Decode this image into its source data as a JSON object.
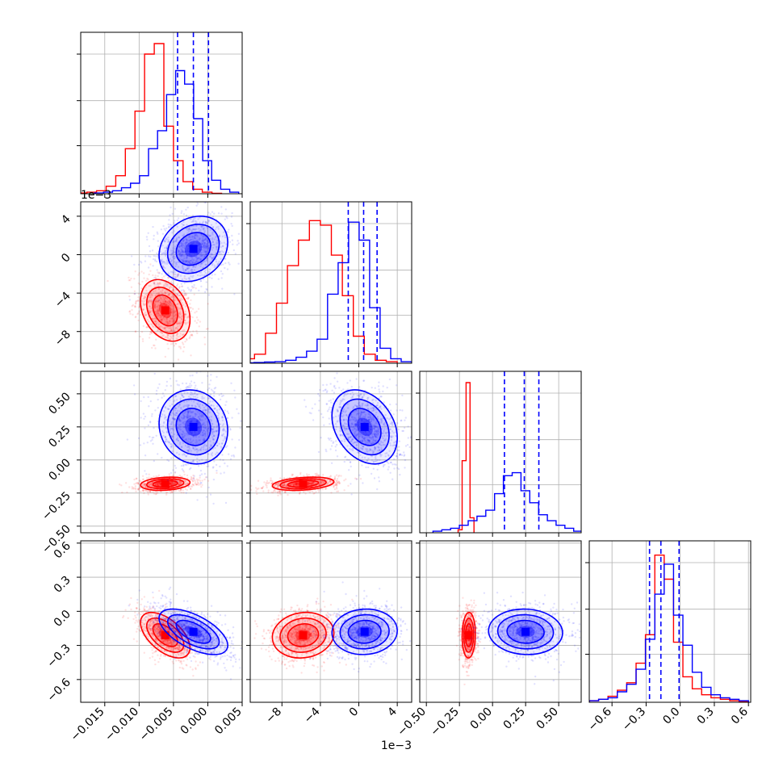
{
  "chart_data": {
    "type": "corner",
    "parameters": [
      {
        "ylim": [
          0,
          1
        ],
        "ticks": [],
        "tick_labels": []
      },
      {
        "lim": [
          -0.0185,
          0.005
        ],
        "ticks": [
          -0.015,
          -0.01,
          -0.005,
          0.0,
          0.005
        ],
        "tick_labels": [
          "−0.015",
          "−0.010",
          "−0.005",
          "0.000",
          "0.005"
        ]
      },
      {
        "lim": [
          -0.0113,
          0.0055
        ],
        "ticks": [
          -0.008,
          -0.004,
          0.0,
          0.004
        ],
        "tick_labels": [
          "−8",
          "−4",
          "0",
          "4"
        ],
        "offset_text": "1e−3"
      },
      {
        "lim": [
          -0.55,
          0.67
        ],
        "ticks": [
          -0.5,
          -0.25,
          0.0,
          0.25,
          0.5
        ],
        "tick_labels": [
          "−0.50",
          "−0.25",
          "0.00",
          "0.25",
          "0.50"
        ]
      },
      {
        "lim": [
          -0.8,
          0.62
        ],
        "ticks": [
          -0.6,
          -0.3,
          0.0,
          0.3,
          0.6
        ],
        "tick_labels": [
          "−0.6",
          "−0.3",
          "0.0",
          "0.3",
          "0.6"
        ]
      }
    ],
    "series": [
      {
        "name": "",
        "color": "#ff0000",
        "mean": [
          -0.0062,
          -0.0058,
          -0.18,
          -0.21
        ],
        "sd": [
          0.0018,
          0.0016,
          0.025,
          0.1
        ],
        "corr": [
          [
            0,
            1,
            -0.3
          ],
          [
            0,
            2,
            0.2
          ],
          [
            0,
            3,
            -0.55
          ],
          [
            1,
            2,
            0.3
          ],
          [
            1,
            3,
            0.1
          ],
          [
            2,
            3,
            0.05
          ]
        ],
        "hist": [
          {
            "x0": -0.019,
            "x1": 0.002,
            "heights": [
              0.005,
              0.01,
              0.02,
              0.05,
              0.12,
              0.3,
              0.55,
              0.93,
              1.0,
              0.45,
              0.22,
              0.08,
              0.03,
              0.01,
              0.003
            ]
          },
          {
            "x0": -0.012,
            "x1": 0.004,
            "heights": [
              0.03,
              0.06,
              0.2,
              0.4,
              0.65,
              0.82,
              0.95,
              0.92,
              0.72,
              0.45,
              0.18,
              0.06,
              0.02,
              0.01
            ]
          },
          {
            "x0": -0.26,
            "x1": -0.14,
            "heights": [
              0.02,
              0.48,
              1.0,
              0.1
            ]
          },
          {
            "x0": -0.8,
            "x1": 0.6,
            "heights": [
              0.01,
              0.02,
              0.04,
              0.08,
              0.13,
              0.26,
              0.45,
              0.98,
              0.82,
              0.4,
              0.17,
              0.09,
              0.05,
              0.03,
              0.02,
              0.01,
              0.005
            ]
          }
        ]
      },
      {
        "name": "",
        "color": "#0000ff",
        "mean": [
          -0.0021,
          0.0006,
          0.25,
          -0.18
        ],
        "sd": [
          0.0025,
          0.0017,
          0.14,
          0.1
        ],
        "corr": [
          [
            0,
            1,
            0.2
          ],
          [
            0,
            2,
            -0.1
          ],
          [
            0,
            3,
            -0.6
          ],
          [
            1,
            2,
            -0.3
          ],
          [
            1,
            3,
            0.05
          ],
          [
            2,
            3,
            -0.05
          ]
        ],
        "quantiles": [
          [
            -0.0044,
            -0.0021,
            0.0001
          ],
          [
            -0.0011,
            0.0005,
            0.0019
          ],
          [
            0.09,
            0.24,
            0.35
          ],
          [
            -0.27,
            -0.17,
            -0.01
          ]
        ],
        "hist": [
          {
            "x0": -0.0165,
            "x1": 0.0045,
            "heights": [
              0.005,
              0.01,
              0.02,
              0.04,
              0.07,
              0.12,
              0.3,
              0.42,
              0.66,
              0.82,
              0.73,
              0.5,
              0.22,
              0.09,
              0.03,
              0.01
            ]
          },
          {
            "x0": -0.012,
            "x1": 0.0055,
            "heights": [
              0.003,
              0.005,
              0.008,
              0.01,
              0.02,
              0.04,
              0.08,
              0.16,
              0.46,
              0.67,
              0.94,
              0.82,
              0.37,
              0.1,
              0.03,
              0.01
            ]
          },
          {
            "x0": -0.45,
            "x1": 0.68,
            "heights": [
              0.01,
              0.02,
              0.03,
              0.05,
              0.08,
              0.11,
              0.15,
              0.26,
              0.38,
              0.4,
              0.28,
              0.2,
              0.12,
              0.08,
              0.05,
              0.03,
              0.01
            ]
          },
          {
            "x0": -0.8,
            "x1": 0.6,
            "heights": [
              0.01,
              0.02,
              0.03,
              0.07,
              0.12,
              0.22,
              0.42,
              0.72,
              0.92,
              0.58,
              0.38,
              0.2,
              0.1,
              0.05,
              0.03,
              0.02,
              0.01
            ]
          }
        ]
      }
    ],
    "grid": true
  }
}
